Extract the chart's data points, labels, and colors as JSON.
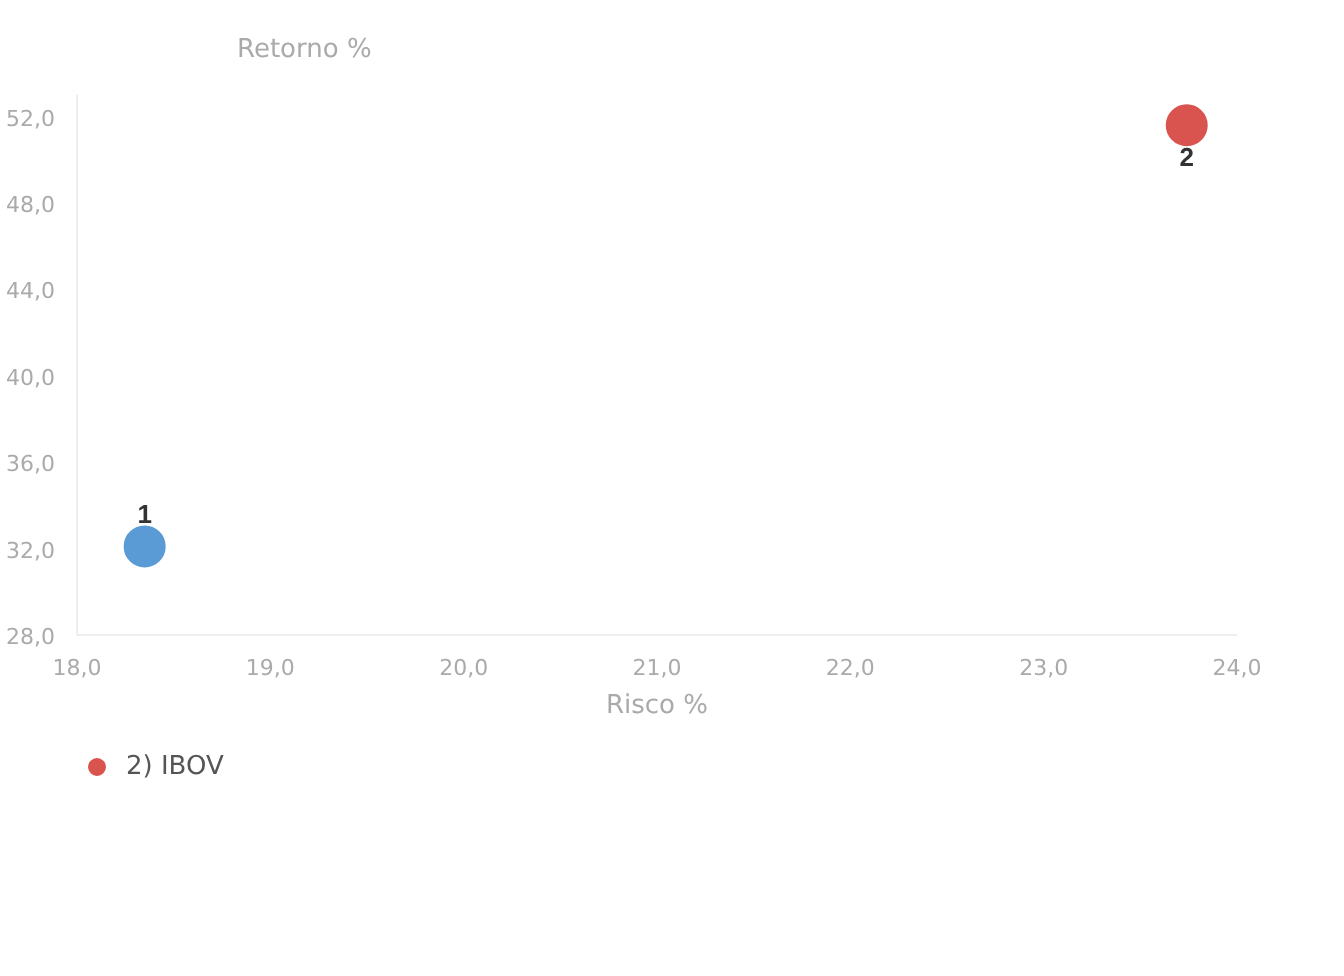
{
  "chart_data": {
    "type": "scatter",
    "xlabel": "Risco %",
    "ylabel": "Retorno %",
    "xlim": [
      18,
      24
    ],
    "ylim": [
      28,
      53
    ],
    "xticks": [
      {
        "value": 18,
        "label": "18,0"
      },
      {
        "value": 19,
        "label": "19,0"
      },
      {
        "value": 20,
        "label": "20,0"
      },
      {
        "value": 21,
        "label": "21,0"
      },
      {
        "value": 22,
        "label": "22,0"
      },
      {
        "value": 23,
        "label": "23,0"
      },
      {
        "value": 24,
        "label": "24,0"
      }
    ],
    "yticks": [
      {
        "value": 28,
        "label": "28,0"
      },
      {
        "value": 32,
        "label": "32,0"
      },
      {
        "value": 36,
        "label": "36,0"
      },
      {
        "value": 40,
        "label": "40,0"
      },
      {
        "value": 44,
        "label": "44,0"
      },
      {
        "value": 48,
        "label": "48,0"
      },
      {
        "value": 52,
        "label": "52,0"
      }
    ],
    "series": [
      {
        "color": "#5b9bd5",
        "x": [
          18.35
        ],
        "values": [
          32.1
        ]
      },
      {
        "name": "2) IBOV",
        "color": "#d9534f",
        "x": [
          23.74
        ],
        "values": [
          51.6
        ]
      }
    ],
    "annotations": [
      {
        "text": "1",
        "x": 18.35,
        "y": 32.1
      },
      {
        "text": "2",
        "x": 23.74,
        "y": 51.6
      }
    ],
    "marker": "circle",
    "grid": false,
    "legend": "bottom"
  }
}
